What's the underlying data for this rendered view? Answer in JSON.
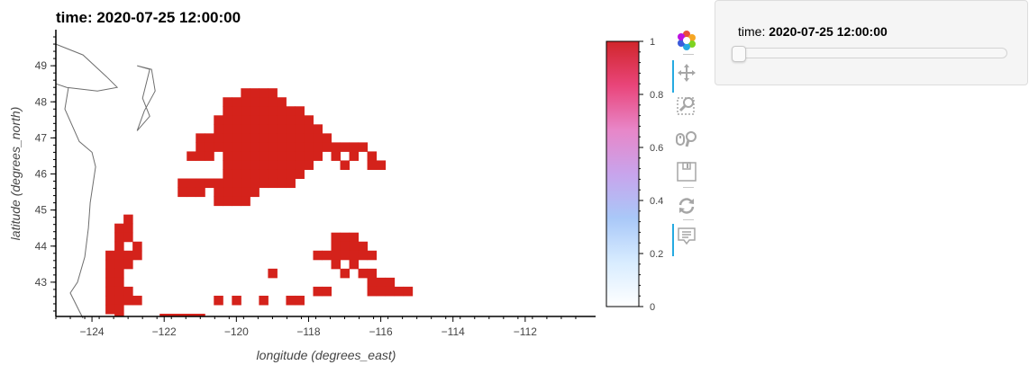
{
  "plot": {
    "title": "time: 2020-07-25 12:00:00"
  },
  "chart_data": {
    "type": "heatmap",
    "title": "time: 2020-07-25 12:00:00",
    "xlabel": "longitude (degrees_east)",
    "ylabel": "latitude (degrees_north)",
    "xlim": [
      -125,
      -110.05
    ],
    "ylim": [
      42.05,
      50
    ],
    "x_ticks": [
      -124,
      -122,
      -120,
      -118,
      -116,
      -114,
      -112
    ],
    "y_ticks": [
      43,
      44,
      45,
      46,
      47,
      48,
      49
    ],
    "cell_size": 0.25,
    "colorbar": {
      "min": 0,
      "max": 1,
      "ticks": [
        0,
        0.2,
        0.4,
        0.6,
        0.8,
        1
      ],
      "tick_labels": [
        "0",
        "0.2",
        "0.4",
        "0.6",
        "0.8",
        "1"
      ],
      "colors": [
        "#ffffff",
        "#d8ecff",
        "#a9c8f8",
        "#c8a4ec",
        "#e886c8",
        "#e9457a",
        "#d0262b"
      ]
    },
    "filled_value": 1,
    "filled_color": "#d4221b",
    "filled_cells": [
      [
        -119.75,
        48.25
      ],
      [
        -119.5,
        48.25
      ],
      [
        -119.25,
        48.25
      ],
      [
        -119.0,
        48.25
      ],
      [
        -120.25,
        48.0
      ],
      [
        -120.0,
        48.0
      ],
      [
        -119.75,
        48.0
      ],
      [
        -119.5,
        48.0
      ],
      [
        -119.25,
        48.0
      ],
      [
        -119.0,
        48.0
      ],
      [
        -118.75,
        48.0
      ],
      [
        -120.25,
        47.75
      ],
      [
        -120.0,
        47.75
      ],
      [
        -119.75,
        47.75
      ],
      [
        -119.5,
        47.75
      ],
      [
        -119.25,
        47.75
      ],
      [
        -119.0,
        47.75
      ],
      [
        -118.75,
        47.75
      ],
      [
        -118.5,
        47.75
      ],
      [
        -118.25,
        47.75
      ],
      [
        -120.5,
        47.5
      ],
      [
        -120.25,
        47.5
      ],
      [
        -120.0,
        47.5
      ],
      [
        -119.75,
        47.5
      ],
      [
        -119.5,
        47.5
      ],
      [
        -119.25,
        47.5
      ],
      [
        -119.0,
        47.5
      ],
      [
        -118.75,
        47.5
      ],
      [
        -118.5,
        47.5
      ],
      [
        -118.25,
        47.5
      ],
      [
        -118.0,
        47.5
      ],
      [
        -120.5,
        47.25
      ],
      [
        -120.25,
        47.25
      ],
      [
        -120.0,
        47.25
      ],
      [
        -119.75,
        47.25
      ],
      [
        -119.5,
        47.25
      ],
      [
        -119.25,
        47.25
      ],
      [
        -119.0,
        47.25
      ],
      [
        -118.75,
        47.25
      ],
      [
        -118.5,
        47.25
      ],
      [
        -118.25,
        47.25
      ],
      [
        -118.0,
        47.25
      ],
      [
        -117.75,
        47.25
      ],
      [
        -121.0,
        47.0
      ],
      [
        -120.75,
        47.0
      ],
      [
        -120.5,
        47.0
      ],
      [
        -120.25,
        47.0
      ],
      [
        -120.0,
        47.0
      ],
      [
        -119.75,
        47.0
      ],
      [
        -119.5,
        47.0
      ],
      [
        -119.25,
        47.0
      ],
      [
        -119.0,
        47.0
      ],
      [
        -118.75,
        47.0
      ],
      [
        -118.5,
        47.0
      ],
      [
        -118.25,
        47.0
      ],
      [
        -118.0,
        47.0
      ],
      [
        -117.75,
        47.0
      ],
      [
        -117.5,
        47.0
      ],
      [
        -121.0,
        46.75
      ],
      [
        -120.75,
        46.75
      ],
      [
        -120.5,
        46.75
      ],
      [
        -120.25,
        46.75
      ],
      [
        -120.0,
        46.75
      ],
      [
        -119.75,
        46.75
      ],
      [
        -119.5,
        46.75
      ],
      [
        -119.25,
        46.75
      ],
      [
        -119.0,
        46.75
      ],
      [
        -118.75,
        46.75
      ],
      [
        -118.5,
        46.75
      ],
      [
        -118.25,
        46.75
      ],
      [
        -118.0,
        46.75
      ],
      [
        -117.75,
        46.75
      ],
      [
        -117.5,
        46.75
      ],
      [
        -117.25,
        46.75
      ],
      [
        -117.0,
        46.75
      ],
      [
        -116.75,
        46.75
      ],
      [
        -116.5,
        46.75
      ],
      [
        -121.25,
        46.5
      ],
      [
        -121.0,
        46.5
      ],
      [
        -120.75,
        46.5
      ],
      [
        -120.25,
        46.5
      ],
      [
        -120.0,
        46.5
      ],
      [
        -119.75,
        46.5
      ],
      [
        -119.5,
        46.5
      ],
      [
        -119.25,
        46.5
      ],
      [
        -119.0,
        46.5
      ],
      [
        -118.75,
        46.5
      ],
      [
        -118.5,
        46.5
      ],
      [
        -118.25,
        46.5
      ],
      [
        -118.0,
        46.5
      ],
      [
        -117.75,
        46.5
      ],
      [
        -117.25,
        46.5
      ],
      [
        -116.75,
        46.5
      ],
      [
        -116.25,
        46.5
      ],
      [
        -120.25,
        46.25
      ],
      [
        -120.0,
        46.25
      ],
      [
        -119.75,
        46.25
      ],
      [
        -119.5,
        46.25
      ],
      [
        -119.25,
        46.25
      ],
      [
        -119.0,
        46.25
      ],
      [
        -118.75,
        46.25
      ],
      [
        -118.5,
        46.25
      ],
      [
        -118.25,
        46.25
      ],
      [
        -118.0,
        46.25
      ],
      [
        -117.0,
        46.25
      ],
      [
        -116.25,
        46.25
      ],
      [
        -116.0,
        46.25
      ],
      [
        -120.25,
        46.0
      ],
      [
        -120.0,
        46.0
      ],
      [
        -119.75,
        46.0
      ],
      [
        -119.5,
        46.0
      ],
      [
        -119.25,
        46.0
      ],
      [
        -119.0,
        46.0
      ],
      [
        -118.75,
        46.0
      ],
      [
        -118.5,
        46.0
      ],
      [
        -118.25,
        46.0
      ],
      [
        -121.5,
        45.75
      ],
      [
        -121.25,
        45.75
      ],
      [
        -121.0,
        45.75
      ],
      [
        -120.75,
        45.75
      ],
      [
        -120.5,
        45.75
      ],
      [
        -120.25,
        45.75
      ],
      [
        -120.0,
        45.75
      ],
      [
        -119.75,
        45.75
      ],
      [
        -119.5,
        45.75
      ],
      [
        -119.25,
        45.75
      ],
      [
        -119.0,
        45.75
      ],
      [
        -118.75,
        45.75
      ],
      [
        -118.5,
        45.75
      ],
      [
        -121.5,
        45.5
      ],
      [
        -121.25,
        45.5
      ],
      [
        -121.0,
        45.5
      ],
      [
        -120.5,
        45.5
      ],
      [
        -120.25,
        45.5
      ],
      [
        -120.0,
        45.5
      ],
      [
        -119.75,
        45.5
      ],
      [
        -119.5,
        45.5
      ],
      [
        -120.5,
        45.25
      ],
      [
        -120.25,
        45.25
      ],
      [
        -120.0,
        45.25
      ],
      [
        -119.75,
        45.25
      ],
      [
        -123.0,
        44.75
      ],
      [
        -123.25,
        44.5
      ],
      [
        -123.0,
        44.5
      ],
      [
        -123.25,
        44.25
      ],
      [
        -123.0,
        44.25
      ],
      [
        -117.25,
        44.25
      ],
      [
        -117.0,
        44.25
      ],
      [
        -116.75,
        44.25
      ],
      [
        -123.25,
        44.0
      ],
      [
        -122.75,
        44.0
      ],
      [
        -117.25,
        44.0
      ],
      [
        -117.0,
        44.0
      ],
      [
        -116.75,
        44.0
      ],
      [
        -116.5,
        44.0
      ],
      [
        -123.5,
        43.75
      ],
      [
        -123.25,
        43.75
      ],
      [
        -123.0,
        43.75
      ],
      [
        -122.75,
        43.75
      ],
      [
        -117.75,
        43.75
      ],
      [
        -117.5,
        43.75
      ],
      [
        -117.25,
        43.75
      ],
      [
        -117.0,
        43.75
      ],
      [
        -116.75,
        43.75
      ],
      [
        -116.5,
        43.75
      ],
      [
        -116.25,
        43.75
      ],
      [
        -123.5,
        43.5
      ],
      [
        -123.25,
        43.5
      ],
      [
        -123.0,
        43.5
      ],
      [
        -117.25,
        43.5
      ],
      [
        -116.75,
        43.5
      ],
      [
        -123.5,
        43.25
      ],
      [
        -123.25,
        43.25
      ],
      [
        -119.0,
        43.25
      ],
      [
        -117.0,
        43.25
      ],
      [
        -116.5,
        43.25
      ],
      [
        -116.25,
        43.25
      ],
      [
        -123.5,
        43.0
      ],
      [
        -123.25,
        43.0
      ],
      [
        -116.25,
        43.0
      ],
      [
        -116.0,
        43.0
      ],
      [
        -115.75,
        43.0
      ],
      [
        -123.5,
        42.75
      ],
      [
        -123.25,
        42.75
      ],
      [
        -123.0,
        42.75
      ],
      [
        -117.75,
        42.75
      ],
      [
        -117.5,
        42.75
      ],
      [
        -116.25,
        42.75
      ],
      [
        -116.0,
        42.75
      ],
      [
        -115.75,
        42.75
      ],
      [
        -115.5,
        42.75
      ],
      [
        -115.25,
        42.75
      ],
      [
        -123.5,
        42.5
      ],
      [
        -123.25,
        42.5
      ],
      [
        -123.0,
        42.5
      ],
      [
        -122.75,
        42.5
      ],
      [
        -120.5,
        42.5
      ],
      [
        -120.0,
        42.5
      ],
      [
        -119.25,
        42.5
      ],
      [
        -118.5,
        42.5
      ],
      [
        -118.25,
        42.5
      ],
      [
        -123.5,
        42.25
      ],
      [
        -123.25,
        42.25
      ],
      [
        -123.25,
        42.0
      ],
      [
        -122.0,
        42.0
      ],
      [
        -121.75,
        42.0
      ],
      [
        -121.5,
        42.0
      ],
      [
        -121.25,
        42.0
      ],
      [
        -121.0,
        42.0
      ]
    ],
    "coastline": [
      [
        [
          -125.0,
          49.6
        ],
        [
          -124.25,
          49.3
        ],
        [
          -123.6,
          48.7
        ],
        [
          -123.3,
          48.4
        ],
        [
          -123.85,
          48.3
        ],
        [
          -124.7,
          48.4
        ],
        [
          -125.0,
          48.5
        ]
      ],
      [
        [
          -122.75,
          49.0
        ],
        [
          -122.4,
          48.9
        ],
        [
          -122.6,
          48.1
        ],
        [
          -122.4,
          47.6
        ],
        [
          -122.75,
          47.2
        ],
        [
          -122.55,
          47.75
        ],
        [
          -122.25,
          48.3
        ],
        [
          -122.35,
          48.9
        ],
        [
          -122.75,
          49.0
        ]
      ],
      [
        [
          -124.65,
          48.4
        ],
        [
          -124.75,
          47.8
        ],
        [
          -124.35,
          46.9
        ],
        [
          -124.0,
          46.6
        ],
        [
          -123.9,
          46.2
        ],
        [
          -124.05,
          45.2
        ],
        [
          -124.1,
          44.5
        ],
        [
          -124.2,
          43.7
        ],
        [
          -124.4,
          43.0
        ],
        [
          -124.6,
          42.7
        ],
        [
          -124.35,
          42.2
        ],
        [
          -124.25,
          42.0
        ]
      ]
    ]
  },
  "toolbar": {
    "tools": [
      {
        "name": "bokeh-logo",
        "active": false
      },
      {
        "name": "pan-tool",
        "active": true
      },
      {
        "name": "box-zoom-tool",
        "active": false
      },
      {
        "name": "wheel-zoom-tool",
        "active": false
      },
      {
        "name": "save-tool",
        "active": false
      },
      {
        "name": "reset-tool",
        "active": false
      },
      {
        "name": "hover-tool",
        "active": true
      }
    ]
  },
  "widget": {
    "label": "time:",
    "value": "2020-07-25 12:00:00",
    "position_fraction": 0
  }
}
